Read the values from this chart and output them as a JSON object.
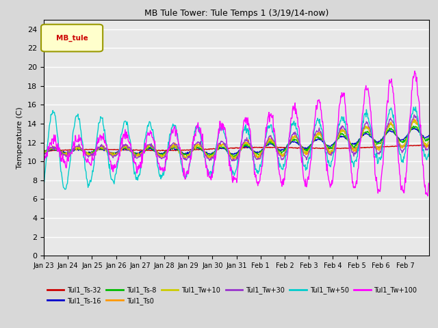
{
  "title": "MB Tule Tower: Tule Temps 1 (3/19/14-now)",
  "ylabel": "Temperature (C)",
  "ylim": [
    0,
    25
  ],
  "yticks": [
    0,
    2,
    4,
    6,
    8,
    10,
    12,
    14,
    16,
    18,
    20,
    22,
    24
  ],
  "xtick_labels": [
    "Jan 23",
    "Jan 24",
    "Jan 25",
    "Jan 26",
    "Jan 27",
    "Jan 28",
    "Jan 29",
    "Jan 30",
    "Jan 31",
    "Feb 1",
    "Feb 2",
    "Feb 3",
    "Feb 4",
    "Feb 5",
    "Feb 6",
    "Feb 7"
  ],
  "n_days": 16,
  "bg_color": "#e8e8e8",
  "legend_box_label": "MB_tule",
  "series": [
    {
      "label": "Tul1_Ts-32",
      "color": "#cc0000"
    },
    {
      "label": "Tul1_Ts-16",
      "color": "#0000cc"
    },
    {
      "label": "Tul1_Ts-8",
      "color": "#00bb00"
    },
    {
      "label": "Tul1_Ts0",
      "color": "#ff9900"
    },
    {
      "label": "Tul1_Tw+10",
      "color": "#cccc00"
    },
    {
      "label": "Tul1_Tw+30",
      "color": "#9933cc"
    },
    {
      "label": "Tul1_Tw+50",
      "color": "#00cccc"
    },
    {
      "label": "Tul1_Tw+100",
      "color": "#ff00ff"
    }
  ]
}
